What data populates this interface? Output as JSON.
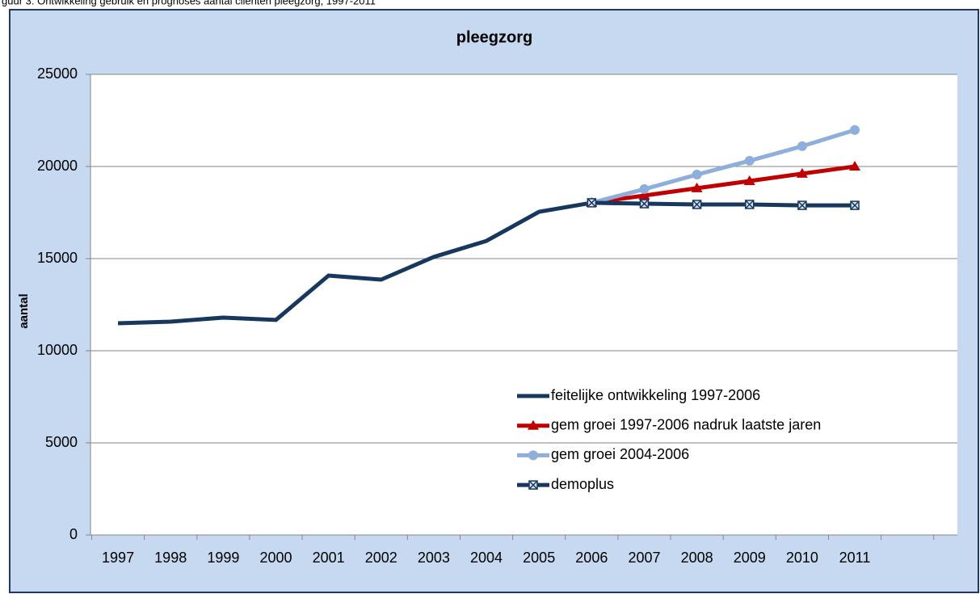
{
  "chart_data": {
    "type": "line",
    "caption": "guur 3: Ontwikkeling gebruik en prognoses aantal cliënten pleegzorg, 1997-2011",
    "title": "pleegzorg",
    "y_label": "aantal",
    "categories": [
      "1997",
      "1998",
      "1999",
      "2000",
      "2001",
      "2002",
      "2003",
      "2004",
      "2005",
      "2006",
      "2007",
      "2008",
      "2009",
      "2010",
      "2011"
    ],
    "ylim": [
      0,
      25000
    ],
    "yticks": [
      0,
      5000,
      10000,
      15000,
      20000,
      25000
    ],
    "grid": true,
    "series": [
      {
        "name": "feitelijke ontwikkeling 1997-2006",
        "color": "#17375e",
        "marker": "none",
        "values": [
          11490,
          11580,
          11800,
          11670,
          14080,
          13860,
          15090,
          15960,
          17540,
          18030,
          null,
          null,
          null,
          null,
          null
        ]
      },
      {
        "name": "gem groei 1997-2006 nadruk laatste jaren",
        "color": "#c00000",
        "marker": "triangle",
        "values": [
          null,
          null,
          null,
          null,
          null,
          null,
          null,
          null,
          null,
          18030,
          18420,
          18820,
          19210,
          19610,
          20000
        ]
      },
      {
        "name": "gem groei 2004-2006",
        "color": "#8eaedb",
        "marker": "circle",
        "values": [
          null,
          null,
          null,
          null,
          null,
          null,
          null,
          null,
          null,
          18030,
          18770,
          19560,
          20310,
          21100,
          21980
        ]
      },
      {
        "name": "demoplus",
        "color": "#17375e",
        "marker": "xsquare",
        "values": [
          null,
          null,
          null,
          null,
          null,
          null,
          null,
          null,
          null,
          18030,
          17980,
          17940,
          17940,
          17890,
          17890
        ]
      }
    ]
  }
}
